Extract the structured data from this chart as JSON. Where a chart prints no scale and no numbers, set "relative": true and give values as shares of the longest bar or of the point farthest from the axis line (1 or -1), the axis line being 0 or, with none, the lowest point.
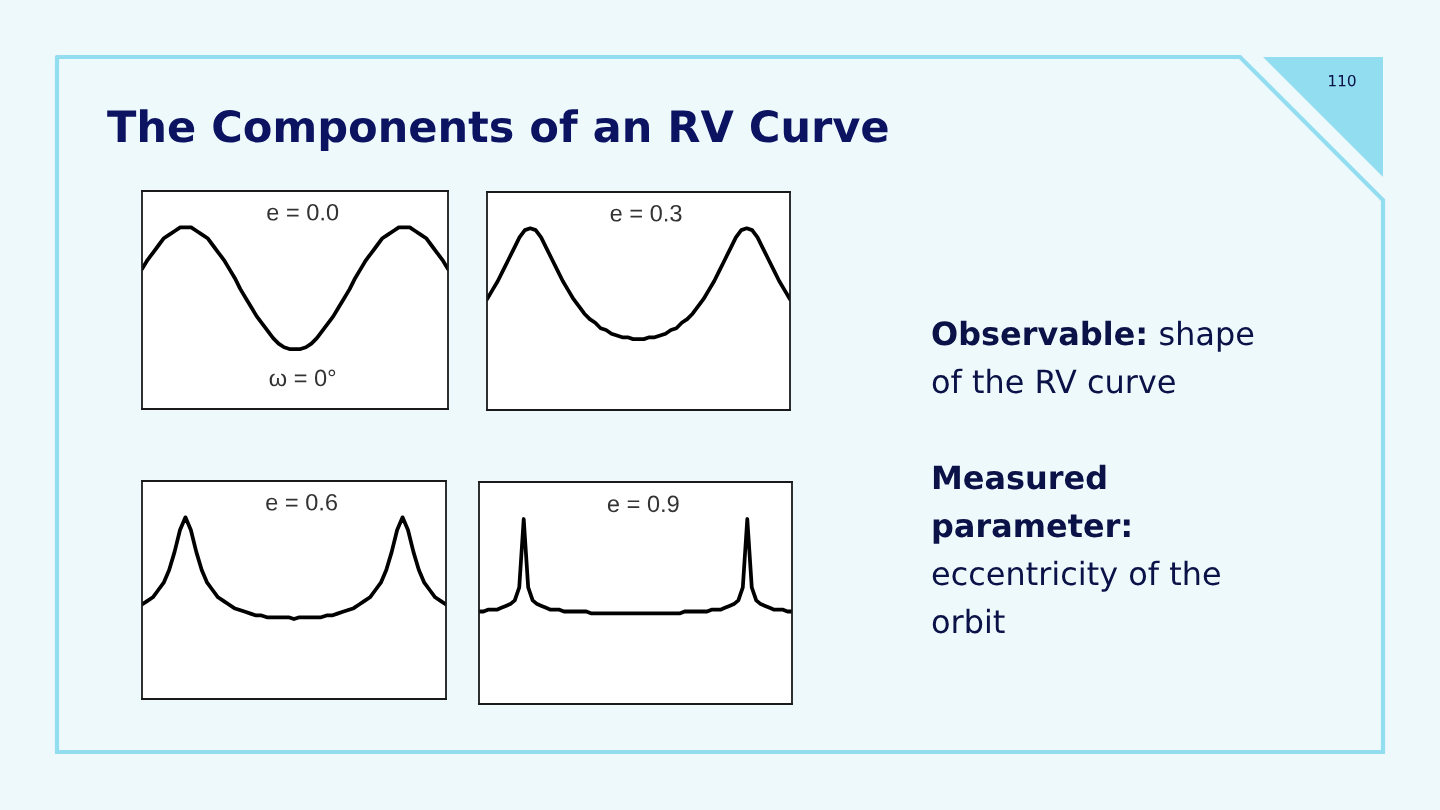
{
  "chart_data": [
    {
      "type": "other",
      "title": "The Components of an RV Curve",
      "annotations": [
        "110",
        "Observable: shape of the RV curve",
        "Measured parameter: eccentricity of the orbit"
      ]
    },
    {
      "type": "line",
      "title": "e = 0.0",
      "relative": true,
      "color": "#000000",
      "annotations": [
        "ω = 0°"
      ],
      "categories": [
        null,
        null,
        null,
        null,
        null,
        null,
        null,
        null,
        null,
        null,
        null,
        null,
        null,
        null,
        null,
        null,
        null,
        null,
        null,
        null,
        null,
        null,
        null,
        null,
        null,
        null,
        null,
        null,
        null,
        null,
        null,
        null,
        null,
        null,
        null,
        null,
        null,
        null,
        null,
        null,
        null,
        null,
        null,
        null,
        null,
        null,
        null,
        null,
        null,
        null,
        null,
        null,
        null,
        null,
        null,
        null,
        null
      ],
      "values": [
        0.77,
        0.82,
        0.86,
        0.9,
        0.94,
        0.96,
        0.98,
        1.0,
        1.0,
        1.0,
        0.98,
        0.96,
        0.94,
        0.9,
        0.86,
        0.82,
        0.77,
        0.72,
        0.66,
        0.61,
        0.56,
        0.51,
        0.47,
        0.43,
        0.39,
        0.36,
        0.34,
        0.33,
        0.33,
        0.33,
        0.34,
        0.36,
        0.39,
        0.43,
        0.47,
        0.51,
        0.56,
        0.61,
        0.66,
        0.72,
        0.77,
        0.82,
        0.86,
        0.9,
        0.94,
        0.96,
        0.98,
        1.0,
        1.0,
        1.0,
        0.98,
        0.96,
        0.94,
        0.9,
        0.86,
        0.82,
        0.77
      ]
    },
    {
      "type": "line",
      "title": "e = 0.3",
      "relative": true,
      "color": "#000000",
      "categories": [
        null,
        null,
        null,
        null,
        null,
        null,
        null,
        null,
        null,
        null,
        null,
        null,
        null,
        null,
        null,
        null,
        null,
        null,
        null,
        null,
        null,
        null,
        null,
        null,
        null,
        null,
        null,
        null,
        null,
        null,
        null,
        null,
        null,
        null,
        null,
        null,
        null,
        null,
        null,
        null,
        null,
        null,
        null,
        null,
        null,
        null,
        null,
        null,
        null,
        null,
        null,
        null,
        null,
        null,
        null,
        null,
        null
      ],
      "values": [
        0.61,
        0.66,
        0.71,
        0.77,
        0.83,
        0.89,
        0.95,
        0.99,
        1.0,
        0.99,
        0.95,
        0.89,
        0.83,
        0.77,
        0.71,
        0.66,
        0.61,
        0.57,
        0.53,
        0.5,
        0.48,
        0.45,
        0.44,
        0.42,
        0.41,
        0.4,
        0.4,
        0.39,
        0.39,
        0.39,
        0.4,
        0.4,
        0.41,
        0.42,
        0.44,
        0.45,
        0.48,
        0.5,
        0.53,
        0.57,
        0.61,
        0.66,
        0.71,
        0.77,
        0.83,
        0.89,
        0.95,
        0.99,
        1.0,
        0.99,
        0.95,
        0.89,
        0.83,
        0.77,
        0.71,
        0.66,
        0.61
      ]
    },
    {
      "type": "line",
      "title": "e = 0.6",
      "relative": true,
      "color": "#000000",
      "categories": [
        null,
        null,
        null,
        null,
        null,
        null,
        null,
        null,
        null,
        null,
        null,
        null,
        null,
        null,
        null,
        null,
        null,
        null,
        null,
        null,
        null,
        null,
        null,
        null,
        null,
        null,
        null,
        null,
        null,
        null,
        null,
        null,
        null,
        null,
        null,
        null,
        null,
        null,
        null,
        null,
        null,
        null,
        null,
        null,
        null,
        null,
        null,
        null,
        null,
        null,
        null,
        null,
        null,
        null,
        null,
        null,
        null
      ],
      "values": [
        0.52,
        0.54,
        0.56,
        0.6,
        0.64,
        0.71,
        0.81,
        0.93,
        1.0,
        0.93,
        0.81,
        0.71,
        0.64,
        0.6,
        0.56,
        0.54,
        0.52,
        0.5,
        0.49,
        0.48,
        0.47,
        0.46,
        0.46,
        0.45,
        0.45,
        0.45,
        0.45,
        0.45,
        0.44,
        0.45,
        0.45,
        0.45,
        0.45,
        0.45,
        0.46,
        0.46,
        0.47,
        0.48,
        0.49,
        0.5,
        0.52,
        0.54,
        0.56,
        0.6,
        0.64,
        0.71,
        0.81,
        0.93,
        1.0,
        0.93,
        0.81,
        0.71,
        0.64,
        0.6,
        0.56,
        0.54,
        0.52
      ]
    },
    {
      "type": "line",
      "title": "e = 0.9",
      "relative": true,
      "color": "#000000",
      "categories": [
        null,
        null,
        null,
        null,
        null,
        null,
        null,
        null,
        null,
        null,
        null,
        null,
        null,
        null,
        null,
        null,
        null,
        null,
        null,
        null,
        null,
        null,
        null,
        null,
        null,
        null,
        null,
        null,
        null,
        null,
        null,
        null,
        null,
        null,
        null,
        null,
        null,
        null,
        null,
        null,
        null,
        null,
        null,
        null,
        null,
        null,
        null,
        null,
        null,
        null,
        null,
        null,
        null,
        null,
        null,
        null,
        null,
        null,
        null,
        null,
        null,
        null,
        null,
        null,
        null,
        null,
        null,
        null,
        null,
        null,
        null
      ],
      "values": [
        0.5,
        0.5,
        0.51,
        0.51,
        0.51,
        0.52,
        0.53,
        0.54,
        0.56,
        0.63,
        1.0,
        0.63,
        0.56,
        0.54,
        0.53,
        0.52,
        0.51,
        0.51,
        0.51,
        0.5,
        0.5,
        0.5,
        0.5,
        0.5,
        0.5,
        0.49,
        0.49,
        0.49,
        0.49,
        0.49,
        0.49,
        0.49,
        0.49,
        0.49,
        0.49,
        0.49,
        0.49,
        0.49,
        0.49,
        0.49,
        0.49,
        0.49,
        0.49,
        0.49,
        0.49,
        0.49,
        0.5,
        0.5,
        0.5,
        0.5,
        0.5,
        0.5,
        0.51,
        0.51,
        0.51,
        0.52,
        0.53,
        0.54,
        0.56,
        0.63,
        1.0,
        0.63,
        0.56,
        0.54,
        0.53,
        0.52,
        0.51,
        0.51,
        0.51,
        0.5,
        0.5
      ]
    }
  ]
}
